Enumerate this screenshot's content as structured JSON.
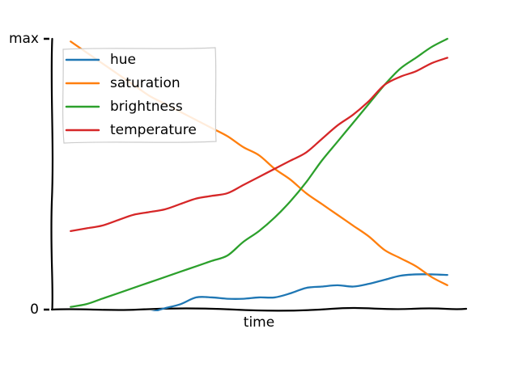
{
  "chart_data": {
    "type": "line",
    "style": "xkcd",
    "xlabel": "time",
    "ylabel": "",
    "x": [
      0,
      1,
      2,
      3,
      4,
      5,
      6,
      7,
      8,
      9,
      10,
      11,
      12,
      13,
      14,
      15,
      16,
      17,
      18,
      19,
      20,
      21,
      22,
      23,
      24
    ],
    "ylim": [
      0,
      1
    ],
    "xlim": [
      -1.2,
      25.2
    ],
    "ytick_values": [
      0,
      1
    ],
    "ytick_labels": [
      "0",
      "max"
    ],
    "legend_position": "top-left",
    "series": [
      {
        "name": "hue",
        "color": "#1f77b4",
        "values": [
          -0.02,
          -0.03,
          -0.03,
          -0.02,
          -0.01,
          -0.01,
          0.005,
          0.02,
          0.045,
          0.045,
          0.04,
          0.04,
          0.045,
          0.045,
          0.06,
          0.08,
          0.085,
          0.09,
          0.085,
          0.095,
          0.11,
          0.125,
          0.13,
          0.13,
          0.128
        ]
      },
      {
        "name": "saturation",
        "color": "#ff7f0e",
        "values": [
          0.99,
          0.95,
          0.91,
          0.87,
          0.83,
          0.79,
          0.76,
          0.73,
          0.7,
          0.67,
          0.64,
          0.6,
          0.57,
          0.52,
          0.48,
          0.43,
          0.39,
          0.35,
          0.31,
          0.27,
          0.22,
          0.19,
          0.16,
          0.12,
          0.09
        ]
      },
      {
        "name": "brightness",
        "color": "#2ca02c",
        "values": [
          0.01,
          0.02,
          0.04,
          0.06,
          0.08,
          0.1,
          0.12,
          0.14,
          0.16,
          0.18,
          0.2,
          0.25,
          0.29,
          0.34,
          0.4,
          0.47,
          0.55,
          0.62,
          0.69,
          0.76,
          0.83,
          0.89,
          0.93,
          0.97,
          1.0
        ]
      },
      {
        "name": "temperature",
        "color": "#d62728",
        "values": [
          0.29,
          0.3,
          0.31,
          0.33,
          0.35,
          0.36,
          0.37,
          0.39,
          0.41,
          0.42,
          0.43,
          0.46,
          0.49,
          0.52,
          0.55,
          0.58,
          0.63,
          0.68,
          0.72,
          0.77,
          0.83,
          0.86,
          0.88,
          0.91,
          0.93
        ]
      }
    ]
  }
}
